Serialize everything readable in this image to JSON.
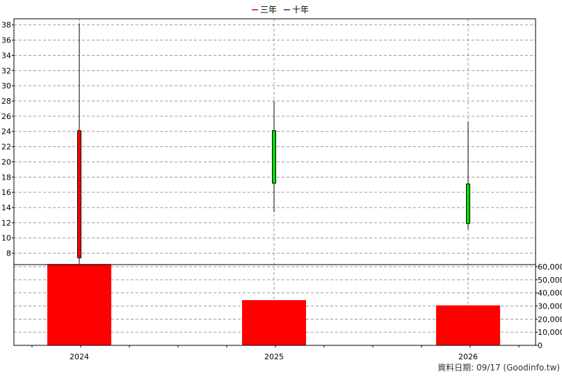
{
  "chart_data": {
    "type": "candlestick+bar",
    "legend": [
      {
        "name": "三年",
        "color": "#e00000"
      },
      {
        "name": "十年",
        "color": "#5a0aa0"
      }
    ],
    "categories": [
      "2024",
      "2025",
      "2026"
    ],
    "price": {
      "ylim": [
        6.5,
        38.8
      ],
      "ticks": [
        8,
        10,
        12,
        14,
        16,
        18,
        20,
        22,
        24,
        26,
        28,
        30,
        32,
        34,
        36,
        38
      ],
      "candles": [
        {
          "x": "2024",
          "open": 24.1,
          "close": 7.4,
          "high": 38.2,
          "low": 6.6,
          "color": "#ff0000"
        },
        {
          "x": "2025",
          "open": 17.2,
          "close": 24.1,
          "high": 28.0,
          "low": 13.4,
          "color": "#00dd00"
        },
        {
          "x": "2026",
          "open": 11.9,
          "close": 17.1,
          "high": 25.3,
          "low": 11.1,
          "color": "#00dd00"
        }
      ]
    },
    "volume": {
      "ylim": [
        0,
        60000
      ],
      "ticks": [
        "0",
        "10,000",
        "20,000",
        "30,000",
        "40,000",
        "50,000",
        "60,000"
      ],
      "values": [
        62000,
        34500,
        30500
      ],
      "color": "#ff0000"
    },
    "grid": true,
    "legend_position": "top-center"
  },
  "footer": "資料日期: 09/17  (Goodinfo.tw)"
}
